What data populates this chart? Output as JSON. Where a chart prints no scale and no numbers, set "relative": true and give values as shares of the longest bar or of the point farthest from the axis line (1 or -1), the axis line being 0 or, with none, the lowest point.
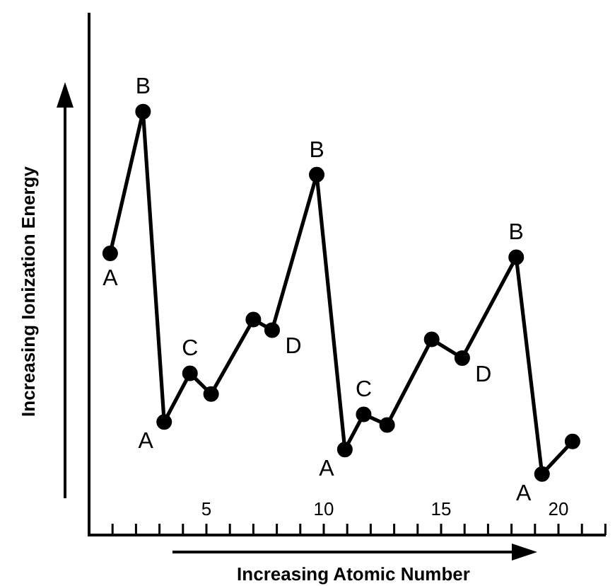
{
  "chart_data": {
    "type": "line",
    "relative": true,
    "xlabel": "Increasing Atomic Number",
    "ylabel": "Increasing Ionization Energy",
    "xlim": [
      0,
      22
    ],
    "xticks": [
      {
        "value": 1,
        "label": null
      },
      {
        "value": 2,
        "label": null
      },
      {
        "value": 3,
        "label": null
      },
      {
        "value": 4,
        "label": null
      },
      5,
      {
        "value": 6,
        "label": null
      },
      {
        "value": 7,
        "label": null
      },
      {
        "value": 8,
        "label": null
      },
      {
        "value": 9,
        "label": null
      },
      10,
      {
        "value": 11,
        "label": null
      },
      {
        "value": 12,
        "label": null
      },
      {
        "value": 13,
        "label": null
      },
      {
        "value": 14,
        "label": null
      },
      15,
      {
        "value": 16,
        "label": null
      },
      {
        "value": 17,
        "label": null
      },
      {
        "value": 18,
        "label": null
      },
      {
        "value": 19,
        "label": null
      },
      20,
      {
        "value": 21,
        "label": null
      },
      {
        "value": 22,
        "label": null
      }
    ],
    "series": [
      {
        "color": "#000000",
        "x": [
          0.9,
          2.3,
          3.2,
          4.3,
          5.2,
          7.0,
          7.8,
          9.7,
          10.9,
          11.7,
          12.7,
          14.6,
          15.9,
          18.2,
          19.3,
          20.6
        ],
        "values": [
          0.665,
          1,
          0.267,
          0.382,
          0.333,
          0.509,
          0.484,
          0.851,
          0.202,
          0.285,
          0.26,
          0.462,
          0.418,
          0.656,
          0.144,
          0.221
        ]
      }
    ],
    "annotations": [
      {
        "text": "A",
        "x": 0.9,
        "y": 0.665
      },
      {
        "text": "B",
        "x": 2.3,
        "y": 1
      },
      {
        "text": "A",
        "x": 3.2,
        "y": 0.267
      },
      {
        "text": "C",
        "x": 4.3,
        "y": 0.382
      },
      {
        "text": "D",
        "x": 7.8,
        "y": 0.484
      },
      {
        "text": "B",
        "x": 9.7,
        "y": 0.851
      },
      {
        "text": "A",
        "x": 10.9,
        "y": 0.202
      },
      {
        "text": "C",
        "x": 11.7,
        "y": 0.285
      },
      {
        "text": "D",
        "x": 15.9,
        "y": 0.418
      },
      {
        "text": "B",
        "x": 18.2,
        "y": 0.656
      },
      {
        "text": "A",
        "x": 19.3,
        "y": 0.144
      }
    ],
    "legend": false,
    "grid": false,
    "marker": "circle",
    "line_style": "solid"
  }
}
